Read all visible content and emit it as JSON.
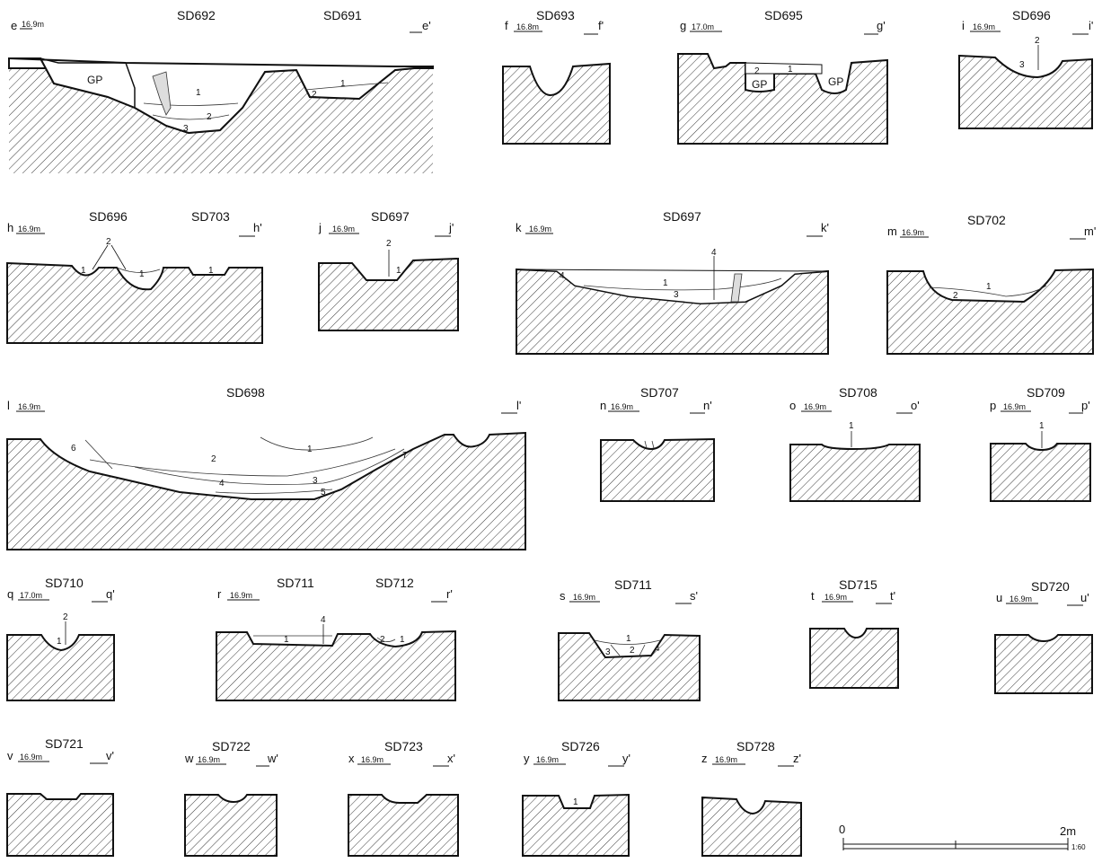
{
  "sections": [
    {
      "id": "e",
      "start": "e",
      "end": "e'",
      "elevation": "16.9m",
      "features": [
        "SD692",
        "SD691"
      ],
      "layers": [
        "GP",
        "1",
        "2",
        "3",
        "1",
        "2"
      ]
    },
    {
      "id": "f",
      "start": "f",
      "end": "f'",
      "elevation": "16.8m",
      "features": [
        "SD693"
      ],
      "layers": []
    },
    {
      "id": "g",
      "start": "g",
      "end": "g'",
      "elevation": "17.0m",
      "features": [
        "SD695"
      ],
      "layers": [
        "2",
        "1",
        "GP",
        "GP"
      ]
    },
    {
      "id": "i",
      "start": "i",
      "end": "i'",
      "elevation": "16.9m",
      "features": [
        "SD696"
      ],
      "layers": [
        "2",
        "3"
      ]
    },
    {
      "id": "h",
      "start": "h",
      "end": "h'",
      "elevation": "16.9m",
      "features": [
        "SD696",
        "SD703"
      ],
      "layers": [
        "2",
        "1",
        "1",
        "1"
      ]
    },
    {
      "id": "j",
      "start": "j",
      "end": "j'",
      "elevation": "16.9m",
      "features": [
        "SD697"
      ],
      "layers": [
        "2",
        "1"
      ]
    },
    {
      "id": "k",
      "start": "k",
      "end": "k'",
      "elevation": "16.9m",
      "features": [
        "SD697"
      ],
      "layers": [
        "4",
        "4",
        "1",
        "3"
      ]
    },
    {
      "id": "m",
      "start": "m",
      "end": "m'",
      "elevation": "16.9m",
      "features": [
        "SD702"
      ],
      "layers": [
        "1",
        "2"
      ]
    },
    {
      "id": "l",
      "start": "l",
      "end": "l'",
      "elevation": "16.9m",
      "features": [
        "SD698"
      ],
      "layers": [
        "1",
        "2",
        "3",
        "4",
        "5",
        "6",
        "7"
      ]
    },
    {
      "id": "n",
      "start": "n",
      "end": "n'",
      "elevation": "16.9m",
      "features": [
        "SD707"
      ],
      "layers": []
    },
    {
      "id": "o",
      "start": "o",
      "end": "o'",
      "elevation": "16.9m",
      "features": [
        "SD708"
      ],
      "layers": [
        "1"
      ]
    },
    {
      "id": "p",
      "start": "p",
      "end": "p'",
      "elevation": "16.9m",
      "features": [
        "SD709"
      ],
      "layers": [
        "1"
      ]
    },
    {
      "id": "q",
      "start": "q",
      "end": "q'",
      "elevation": "17.0m",
      "features": [
        "SD710"
      ],
      "layers": [
        "2",
        "1"
      ]
    },
    {
      "id": "r",
      "start": "r",
      "end": "r'",
      "elevation": "16.9m",
      "features": [
        "SD711",
        "SD712"
      ],
      "layers": [
        "4",
        "1",
        "2",
        "1"
      ]
    },
    {
      "id": "s",
      "start": "s",
      "end": "s'",
      "elevation": "16.9m",
      "features": [
        "SD711"
      ],
      "layers": [
        "1",
        "3",
        "2",
        "4"
      ]
    },
    {
      "id": "t",
      "start": "t",
      "end": "t'",
      "elevation": "16.9m",
      "features": [
        "SD715"
      ],
      "layers": []
    },
    {
      "id": "u",
      "start": "u",
      "end": "u'",
      "elevation": "16.9m",
      "features": [
        "SD720"
      ],
      "layers": []
    },
    {
      "id": "v",
      "start": "v",
      "end": "v'",
      "elevation": "16.9m",
      "features": [
        "SD721"
      ],
      "layers": []
    },
    {
      "id": "w",
      "start": "w",
      "end": "w'",
      "elevation": "16.9m",
      "features": [
        "SD722"
      ],
      "layers": []
    },
    {
      "id": "x",
      "start": "x",
      "end": "x'",
      "elevation": "16.9m",
      "features": [
        "SD723"
      ],
      "layers": []
    },
    {
      "id": "y",
      "start": "y",
      "end": "y'",
      "elevation": "16.9m",
      "features": [
        "SD726"
      ],
      "layers": [
        "1"
      ]
    },
    {
      "id": "z",
      "start": "z",
      "end": "z'",
      "elevation": "16.9m",
      "features": [
        "SD728"
      ],
      "layers": []
    }
  ],
  "scale": {
    "min": "0",
    "max": "2m",
    "ratio": "1:60"
  }
}
